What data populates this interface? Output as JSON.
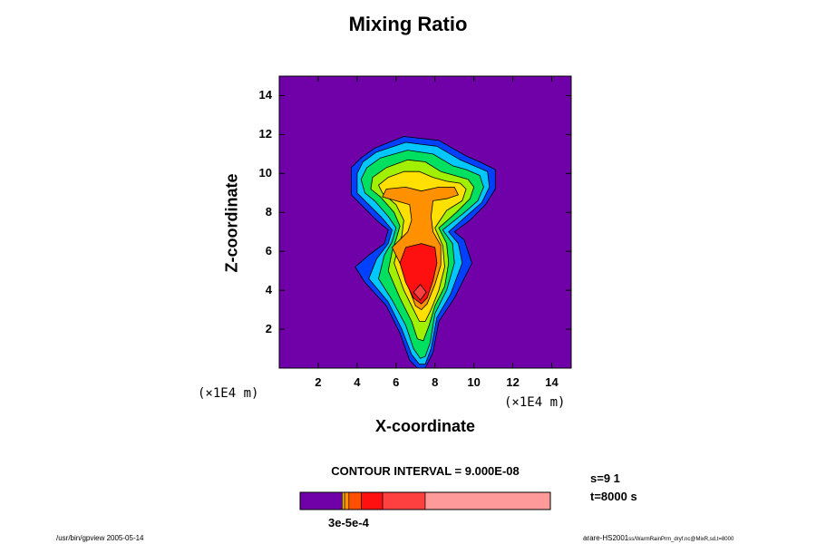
{
  "title": "Mixing Ratio",
  "chart_data": {
    "type": "heatmap",
    "title": "Mixing Ratio",
    "xlabel": "X-coordinate",
    "ylabel": "Z-coordinate",
    "xunit": "(×1E4 m)",
    "yunit": "(×1E4 m)",
    "xlim": [
      0,
      15
    ],
    "ylim": [
      0,
      15
    ],
    "xticks": [
      2,
      4,
      6,
      8,
      10,
      12,
      14
    ],
    "yticks": [
      2,
      4,
      6,
      8,
      10,
      12,
      14
    ],
    "contour_interval_text": "CONTOUR INTERVAL = 9.000E-08",
    "colorbar_label": "3e-5e-4",
    "colorbar_colors": [
      "#7000a8",
      "#e0b000",
      "#ff9000",
      "#ff5000",
      "#ff1010",
      "#ff4040",
      "#ff9a9a"
    ],
    "background_color": "#7000a8",
    "contour_levels": [
      {
        "color": "#0040ff",
        "points": [
          [
            3.9,
            5.2
          ],
          [
            4.4,
            4.4
          ],
          [
            5.5,
            3.2
          ],
          [
            6.2,
            1.8
          ],
          [
            6.7,
            0.4
          ],
          [
            7.1,
            0
          ],
          [
            7.5,
            0
          ],
          [
            7.9,
            0.8
          ],
          [
            8.2,
            2.4
          ],
          [
            9.0,
            3.6
          ],
          [
            9.9,
            5.4
          ],
          [
            9.5,
            6.6
          ],
          [
            9.0,
            7.0
          ],
          [
            9.8,
            7.6
          ],
          [
            10.6,
            8.4
          ],
          [
            11.1,
            9.2
          ],
          [
            11.1,
            10.2
          ],
          [
            10.3,
            10.6
          ],
          [
            9.6,
            10.9
          ],
          [
            8.2,
            11.7
          ],
          [
            6.4,
            11.9
          ],
          [
            4.9,
            11.3
          ],
          [
            4.2,
            10.8
          ],
          [
            3.7,
            10.3
          ],
          [
            3.7,
            8.9
          ],
          [
            4.2,
            8.4
          ],
          [
            5.0,
            7.6
          ],
          [
            5.6,
            7.1
          ],
          [
            5.4,
            6.4
          ],
          [
            4.6,
            5.8
          ]
        ]
      },
      {
        "color": "#00c8ff",
        "points": [
          [
            4.6,
            4.6
          ],
          [
            5.6,
            3.4
          ],
          [
            6.3,
            2.0
          ],
          [
            6.8,
            0.7
          ],
          [
            7.2,
            0.2
          ],
          [
            7.5,
            0.2
          ],
          [
            7.8,
            1.0
          ],
          [
            8.1,
            2.6
          ],
          [
            8.8,
            3.8
          ],
          [
            9.4,
            5.4
          ],
          [
            9.2,
            6.4
          ],
          [
            8.7,
            7.0
          ],
          [
            9.6,
            7.8
          ],
          [
            10.4,
            8.5
          ],
          [
            10.8,
            9.3
          ],
          [
            10.7,
            10.1
          ],
          [
            10.0,
            10.4
          ],
          [
            9.3,
            10.7
          ],
          [
            8.1,
            11.4
          ],
          [
            6.5,
            11.6
          ],
          [
            5.0,
            11.1
          ],
          [
            4.3,
            10.6
          ],
          [
            4.0,
            10.0
          ],
          [
            4.0,
            9.0
          ],
          [
            4.5,
            8.5
          ],
          [
            5.3,
            7.7
          ],
          [
            5.8,
            7.1
          ],
          [
            5.6,
            6.4
          ],
          [
            5.0,
            5.6
          ]
        ]
      },
      {
        "color": "#00e060",
        "points": [
          [
            5.1,
            4.6
          ],
          [
            5.8,
            3.5
          ],
          [
            6.5,
            2.2
          ],
          [
            6.9,
            1.0
          ],
          [
            7.25,
            0.5
          ],
          [
            7.5,
            0.6
          ],
          [
            7.75,
            1.3
          ],
          [
            8.0,
            2.8
          ],
          [
            8.6,
            4.0
          ],
          [
            9.0,
            5.4
          ],
          [
            8.9,
            6.4
          ],
          [
            8.4,
            7.1
          ],
          [
            9.4,
            7.9
          ],
          [
            10.2,
            8.6
          ],
          [
            10.5,
            9.3
          ],
          [
            10.3,
            9.9
          ],
          [
            9.6,
            10.2
          ],
          [
            8.9,
            10.4
          ],
          [
            7.9,
            11.0
          ],
          [
            6.6,
            11.2
          ],
          [
            5.2,
            10.8
          ],
          [
            4.5,
            10.3
          ],
          [
            4.2,
            9.7
          ],
          [
            4.4,
            9.0
          ],
          [
            4.9,
            8.6
          ],
          [
            5.6,
            7.8
          ],
          [
            6.0,
            7.2
          ],
          [
            5.8,
            6.5
          ],
          [
            5.4,
            5.8
          ]
        ]
      },
      {
        "color": "#a0f000",
        "points": [
          [
            5.6,
            5.0
          ],
          [
            6.2,
            3.6
          ],
          [
            6.8,
            2.4
          ],
          [
            7.1,
            1.5
          ],
          [
            7.4,
            1.4
          ],
          [
            7.7,
            2.2
          ],
          [
            8.0,
            3.2
          ],
          [
            8.5,
            4.2
          ],
          [
            8.7,
            5.4
          ],
          [
            8.6,
            6.4
          ],
          [
            8.2,
            7.2
          ],
          [
            9.1,
            8.0
          ],
          [
            9.8,
            8.7
          ],
          [
            10.0,
            9.3
          ],
          [
            9.7,
            9.7
          ],
          [
            9.0,
            9.9
          ],
          [
            8.3,
            10.1
          ],
          [
            7.5,
            10.6
          ],
          [
            6.6,
            10.7
          ],
          [
            5.5,
            10.3
          ],
          [
            4.8,
            9.8
          ],
          [
            4.7,
            9.2
          ],
          [
            5.2,
            8.8
          ],
          [
            5.9,
            8.0
          ],
          [
            6.2,
            7.3
          ],
          [
            6.0,
            6.6
          ],
          [
            5.8,
            6.0
          ]
        ]
      },
      {
        "color": "#ffe000",
        "points": [
          [
            5.9,
            5.4
          ],
          [
            6.4,
            4.0
          ],
          [
            6.9,
            3.0
          ],
          [
            7.2,
            2.4
          ],
          [
            7.5,
            2.4
          ],
          [
            7.8,
            3.0
          ],
          [
            8.2,
            4.0
          ],
          [
            8.5,
            5.2
          ],
          [
            8.4,
            6.3
          ],
          [
            8.0,
            7.2
          ],
          [
            8.6,
            8.1
          ],
          [
            9.4,
            8.6
          ],
          [
            9.6,
            9.2
          ],
          [
            9.3,
            9.5
          ],
          [
            8.6,
            9.6
          ],
          [
            7.9,
            9.8
          ],
          [
            7.2,
            10.1
          ],
          [
            6.4,
            10.1
          ],
          [
            5.6,
            9.8
          ],
          [
            5.1,
            9.4
          ],
          [
            5.3,
            9.0
          ],
          [
            6.0,
            8.4
          ],
          [
            6.4,
            7.6
          ],
          [
            6.3,
            6.8
          ],
          [
            6.1,
            6.2
          ]
        ]
      },
      {
        "color": "#ff9000",
        "points": [
          [
            5.8,
            6.2
          ],
          [
            6.3,
            5.2
          ],
          [
            6.7,
            4.0
          ],
          [
            7.0,
            3.2
          ],
          [
            7.3,
            3.0
          ],
          [
            7.6,
            3.3
          ],
          [
            8.0,
            4.3
          ],
          [
            8.3,
            5.3
          ],
          [
            8.3,
            6.3
          ],
          [
            7.9,
            7.0
          ],
          [
            7.8,
            7.8
          ],
          [
            7.9,
            8.6
          ],
          [
            8.6,
            8.7
          ],
          [
            9.2,
            8.9
          ],
          [
            9.0,
            9.3
          ],
          [
            8.2,
            9.3
          ],
          [
            7.3,
            9.1
          ],
          [
            6.5,
            9.3
          ],
          [
            5.5,
            9.2
          ],
          [
            5.3,
            8.8
          ],
          [
            6.0,
            8.6
          ],
          [
            6.7,
            8.4
          ],
          [
            6.8,
            7.6
          ],
          [
            6.6,
            7.0
          ],
          [
            6.2,
            6.6
          ]
        ]
      },
      {
        "color": "#ff1010",
        "points": [
          [
            6.2,
            5.4
          ],
          [
            6.5,
            4.4
          ],
          [
            6.9,
            3.6
          ],
          [
            7.3,
            3.3
          ],
          [
            7.6,
            3.6
          ],
          [
            7.9,
            4.5
          ],
          [
            8.1,
            5.4
          ],
          [
            8.0,
            6.2
          ],
          [
            7.3,
            6.4
          ],
          [
            6.5,
            6.2
          ]
        ]
      },
      {
        "color": "#ff4040",
        "points": [
          [
            6.9,
            3.9
          ],
          [
            7.25,
            3.5
          ],
          [
            7.55,
            3.9
          ],
          [
            7.25,
            4.3
          ]
        ]
      }
    ]
  },
  "footer": {
    "left": "/usr/bin/gpview 2005-05-14",
    "right_main": "arare-HS2001",
    "right_small": "ss/WarmRainPrm_dryf.nc@MixR,sd,t=8000"
  },
  "annotations": {
    "s": "s=9 1",
    "t": "t=8000 s"
  }
}
